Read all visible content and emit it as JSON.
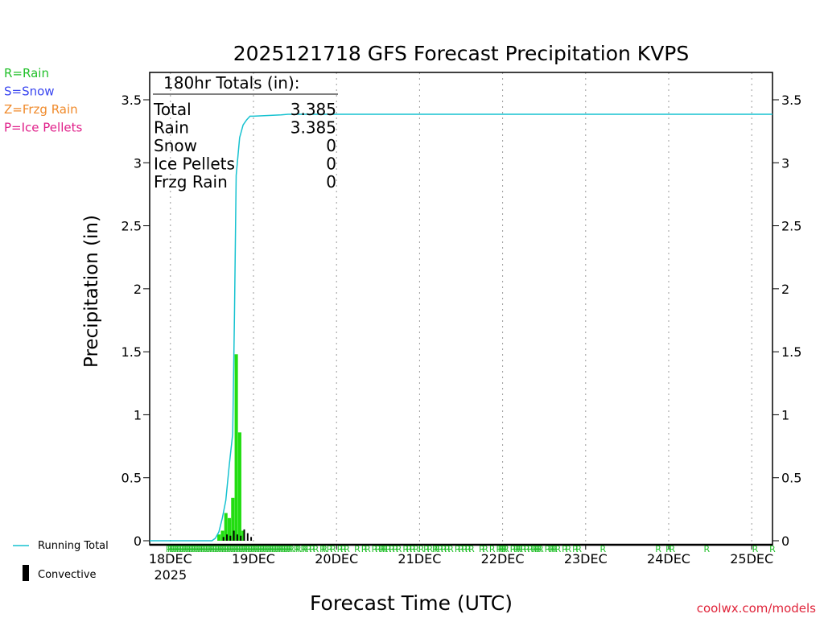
{
  "chart_data": {
    "type": "bar",
    "title": "2025121718 GFS Forecast Precipitation KVPS",
    "xlabel": "Forecast Time (UTC)",
    "ylabel": "Precipitation (in)",
    "ylim": [
      0,
      3.7
    ],
    "y_ticks": [
      "0",
      "0.5",
      "1",
      "1.5",
      "2",
      "2.5",
      "3",
      "3.5"
    ],
    "x_ticks": [
      {
        "label": "18DEC",
        "sublabel": "2025",
        "hour": 6
      },
      {
        "label": "19DEC",
        "hour": 30
      },
      {
        "label": "20DEC",
        "hour": 54
      },
      {
        "label": "21DEC",
        "hour": 78
      },
      {
        "label": "22DEC",
        "hour": 102
      },
      {
        "label": "23DEC",
        "hour": 126
      },
      {
        "label": "24DEC",
        "hour": 150
      },
      {
        "label": "25DEC",
        "hour": 174
      }
    ],
    "x_range_hours": [
      0,
      180
    ],
    "grid": true,
    "type_legend": [
      {
        "code": "R=Rain",
        "color": "#22c02a"
      },
      {
        "code": "S=Snow",
        "color": "#3b47f0"
      },
      {
        "code": "Z=Frzg Rain",
        "color": "#f08a2a"
      },
      {
        "code": "P=Ice Pellets",
        "color": "#e0208a"
      }
    ],
    "totals": {
      "header": "180hr Totals (in):",
      "rows": [
        {
          "label": "Total",
          "value": "3.385"
        },
        {
          "label": "Rain",
          "value": "3.385"
        },
        {
          "label": "Snow",
          "value": "0"
        },
        {
          "label": "Ice Pellets",
          "value": "0"
        },
        {
          "label": "Frzg Rain",
          "value": "0"
        }
      ]
    },
    "series": [
      {
        "name": "Running Total",
        "kind": "line",
        "color": "#16c2d0",
        "points": [
          [
            0,
            0
          ],
          [
            18,
            0
          ],
          [
            19,
            0.02
          ],
          [
            20,
            0.07
          ],
          [
            21,
            0.18
          ],
          [
            22,
            0.32
          ],
          [
            23,
            0.6
          ],
          [
            24,
            0.85
          ],
          [
            24.5,
            1.8
          ],
          [
            25,
            2.9
          ],
          [
            26,
            3.2
          ],
          [
            27,
            3.3
          ],
          [
            28,
            3.34
          ],
          [
            29,
            3.37
          ],
          [
            30,
            3.37
          ],
          [
            38,
            3.38
          ],
          [
            40,
            3.385
          ],
          [
            180,
            3.385
          ]
        ]
      },
      {
        "name": "Rain",
        "kind": "bar",
        "color": "#22dd11",
        "hours": [
          20,
          21,
          22,
          23,
          24,
          25,
          26,
          27
        ],
        "values": [
          0.05,
          0.08,
          0.22,
          0.18,
          0.34,
          1.48,
          0.86,
          0.08
        ]
      },
      {
        "name": "Convective",
        "kind": "bar",
        "color": "#000000",
        "hours": [
          21,
          22,
          23,
          24,
          25,
          26,
          27,
          28,
          29
        ],
        "values": [
          0.03,
          0.05,
          0.04,
          0.08,
          0.05,
          0.04,
          0.09,
          0.06,
          0.03
        ]
      }
    ],
    "rain_markers_hours": [
      5.5,
      6,
      6.5,
      7,
      7.5,
      8,
      8.5,
      9,
      9.5,
      10,
      10.5,
      11,
      11.5,
      12,
      12.5,
      13,
      13.5,
      14,
      14.5,
      15,
      15.5,
      16,
      16.5,
      17,
      17.5,
      18,
      18.5,
      19,
      19.5,
      20,
      20.5,
      21,
      21.5,
      22,
      22.5,
      23,
      23.5,
      24,
      24.5,
      25,
      25.5,
      26,
      26.5,
      27,
      27.5,
      28,
      28.5,
      29,
      29.5,
      30,
      30.5,
      31,
      31.5,
      32,
      32.5,
      33,
      33.5,
      34,
      34.5,
      35,
      35.5,
      36,
      36.5,
      37,
      37.5,
      38,
      38.5,
      39,
      39.5,
      40,
      40.5,
      41,
      42.5,
      43,
      44.5,
      45,
      46,
      47,
      48,
      50,
      50.5,
      52,
      53,
      55,
      56,
      57,
      60,
      62,
      63,
      65,
      66,
      67,
      67.5,
      68,
      69,
      70,
      71,
      72,
      74,
      75,
      76,
      77,
      78.5,
      80,
      81,
      82.5,
      83,
      84,
      85,
      86,
      87,
      89,
      90,
      91,
      92,
      93,
      96,
      97,
      99,
      101,
      101.5,
      102,
      102.5,
      103,
      105,
      106,
      106.5,
      107,
      108,
      109,
      110,
      111,
      111.5,
      112,
      112.5,
      113,
      115,
      116,
      116.5,
      117,
      118,
      120,
      121,
      123,
      124,
      131,
      147,
      150,
      151,
      161,
      175,
      180
    ]
  },
  "legend": {
    "running_total": "Running Total",
    "convective": "Convective",
    "running_total_color": "#16c2d0"
  },
  "credit": "coolwx.com/models",
  "credit_color": "#e0243a"
}
